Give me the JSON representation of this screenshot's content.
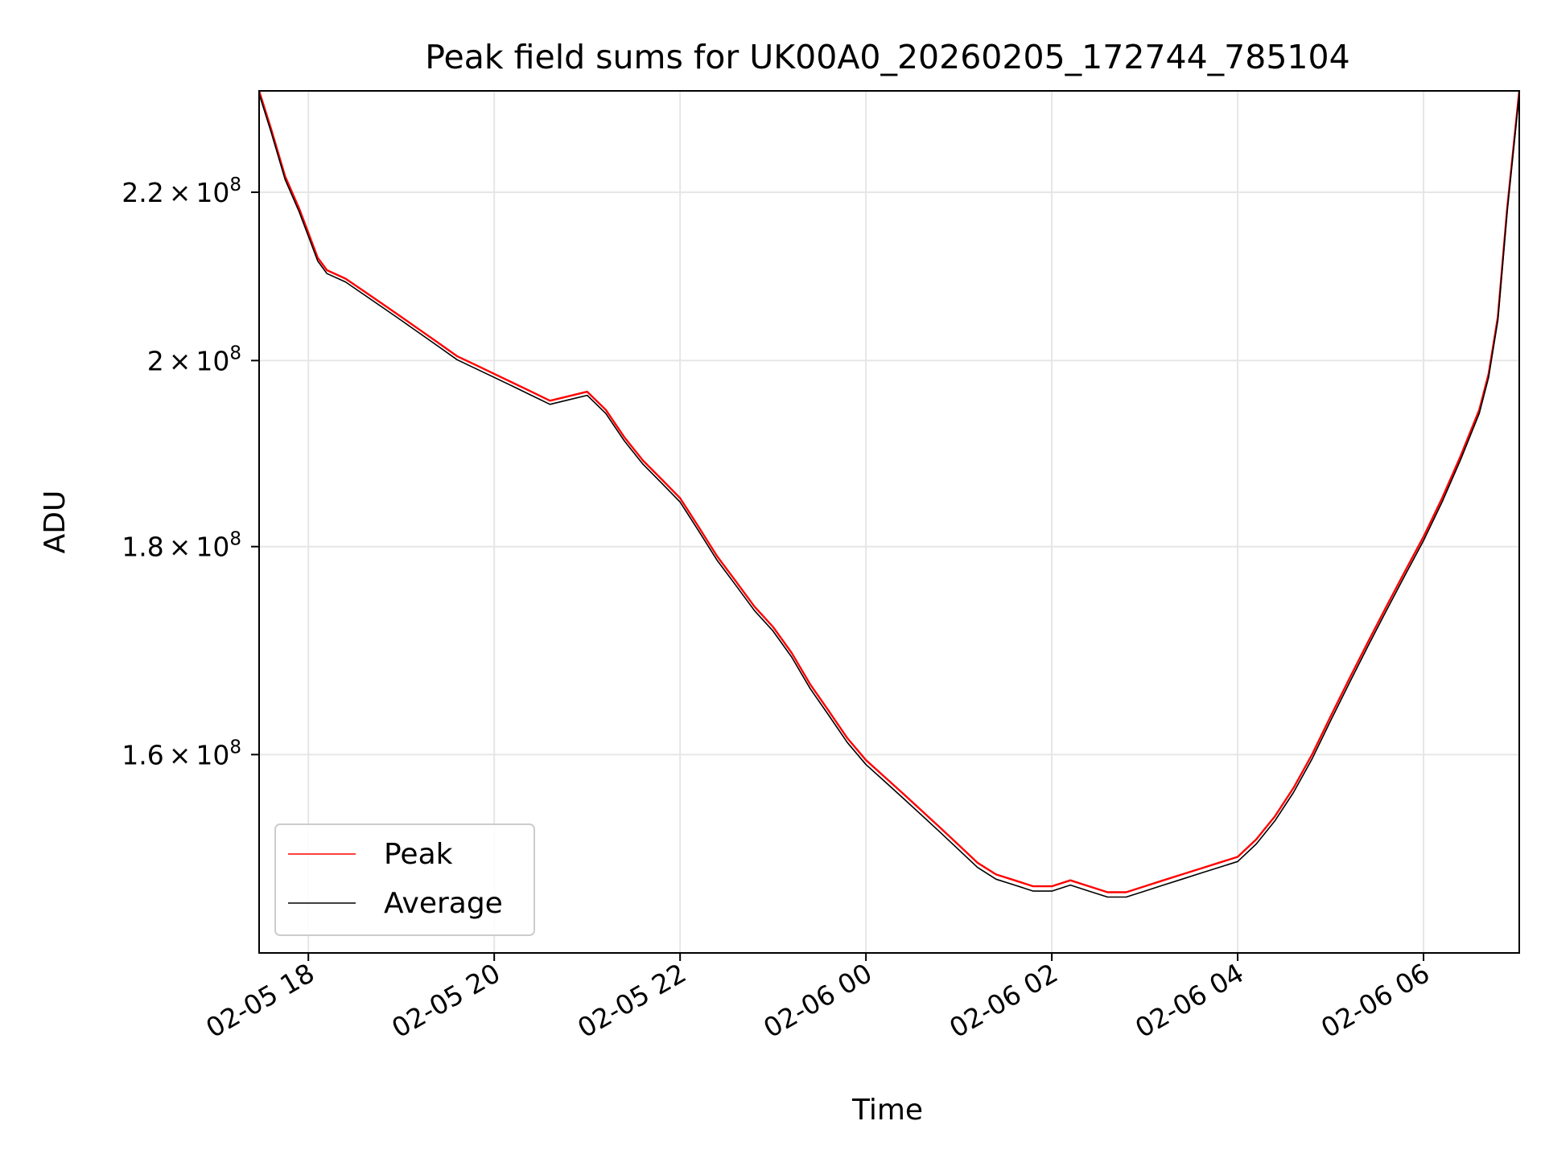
{
  "chart_data": {
    "type": "line",
    "title": "Peak field sums for UK00A0_20260205_172744_785104",
    "xlabel": "Time",
    "ylabel": "ADU",
    "yscale": "log",
    "grid": true,
    "legend_position": "lower-left",
    "x_range_hours": [
      17.47,
      31.03
    ],
    "y_range": [
      143000000,
      233000000
    ],
    "x_ticks": [
      {
        "hour": 18,
        "label": "02-05 18"
      },
      {
        "hour": 20,
        "label": "02-05 20"
      },
      {
        "hour": 22,
        "label": "02-05 22"
      },
      {
        "hour": 24,
        "label": "02-06 00"
      },
      {
        "hour": 26,
        "label": "02-06 02"
      },
      {
        "hour": 28,
        "label": "02-06 04"
      },
      {
        "hour": 30,
        "label": "02-06 06"
      }
    ],
    "y_ticks": [
      {
        "value": 160000000,
        "mant": "1.6",
        "exp": "8"
      },
      {
        "value": 180000000,
        "mant": "1.8",
        "exp": "8"
      },
      {
        "value": 200000000,
        "mant": "2",
        "exp": "8"
      },
      {
        "value": 220000000,
        "mant": "2.2",
        "exp": "8"
      }
    ],
    "times_symbol": "×",
    "base": "10",
    "x_hours": [
      17.47,
      17.6,
      17.75,
      17.9,
      18.0,
      18.1,
      18.2,
      18.4,
      18.6,
      18.8,
      19.0,
      19.2,
      19.4,
      19.6,
      19.8,
      20.0,
      20.2,
      20.4,
      20.6,
      20.8,
      21.0,
      21.2,
      21.4,
      21.6,
      21.8,
      22.0,
      22.2,
      22.4,
      22.6,
      22.8,
      23.0,
      23.2,
      23.4,
      23.6,
      23.8,
      24.0,
      24.2,
      24.4,
      24.6,
      24.8,
      25.0,
      25.2,
      25.4,
      25.6,
      25.8,
      26.0,
      26.2,
      26.4,
      26.6,
      26.8,
      27.0,
      27.2,
      27.4,
      27.6,
      27.8,
      28.0,
      28.2,
      28.4,
      28.6,
      28.8,
      29.0,
      29.2,
      29.4,
      29.6,
      29.8,
      30.0,
      30.2,
      30.4,
      30.6,
      30.7,
      30.8,
      30.9,
      31.03
    ],
    "series": [
      {
        "name": "Peak",
        "color": "#ff0000",
        "values_millions": [
          233.0,
          228.0,
          222.0,
          218.0,
          215.0,
          212.0,
          210.5,
          209.5,
          208.0,
          206.5,
          205.0,
          203.5,
          202.0,
          200.5,
          199.5,
          198.5,
          197.5,
          196.5,
          195.5,
          196.0,
          196.5,
          194.5,
          191.5,
          189.0,
          187.0,
          185.0,
          182.0,
          179.0,
          176.5,
          174.0,
          172.0,
          169.5,
          166.5,
          164.0,
          161.5,
          159.5,
          158.0,
          156.5,
          155.0,
          153.5,
          152.0,
          150.5,
          149.5,
          149.0,
          148.5,
          148.5,
          149.0,
          148.5,
          148.0,
          148.0,
          148.5,
          149.0,
          149.5,
          150.0,
          150.5,
          151.0,
          152.5,
          154.5,
          157.0,
          160.0,
          163.5,
          167.0,
          170.5,
          174.0,
          177.5,
          181.0,
          185.0,
          189.5,
          194.5,
          198.5,
          205.0,
          218.0,
          233.0
        ]
      },
      {
        "name": "Average",
        "color": "#000000",
        "values_millions": [
          232.6,
          227.6,
          221.6,
          217.6,
          214.6,
          211.6,
          210.1,
          209.1,
          207.6,
          206.1,
          204.6,
          203.1,
          201.6,
          200.1,
          199.1,
          198.1,
          197.1,
          196.1,
          195.1,
          195.6,
          196.1,
          194.1,
          191.1,
          188.6,
          186.6,
          184.6,
          181.6,
          178.6,
          176.1,
          173.6,
          171.6,
          169.1,
          166.1,
          163.6,
          161.1,
          159.1,
          157.6,
          156.1,
          154.6,
          153.1,
          151.6,
          150.1,
          149.1,
          148.6,
          148.1,
          148.1,
          148.6,
          148.1,
          147.6,
          147.6,
          148.1,
          148.6,
          149.1,
          149.6,
          150.1,
          150.6,
          152.1,
          154.1,
          156.6,
          159.6,
          163.1,
          166.6,
          170.1,
          173.6,
          177.1,
          180.6,
          184.6,
          189.1,
          194.1,
          198.1,
          204.6,
          217.6,
          232.6
        ]
      }
    ]
  }
}
